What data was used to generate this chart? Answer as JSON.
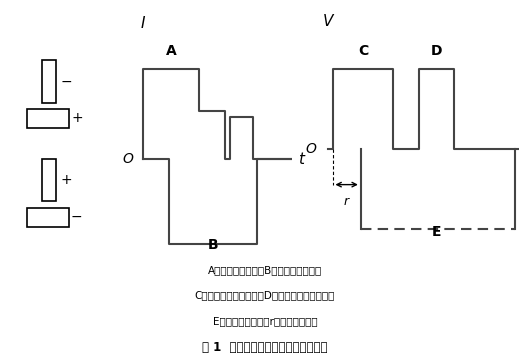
{
  "caption": "圖 1  脈沖變極性弧焊電流及控制波形",
  "legend_line1": "A：直流正接脈沖；B：直流反接脈沖；",
  "legend_line2": "C：直流正接控制脈沖；D：直流反接控制脈沖；",
  "legend_line3": "E：光譜觸發信號；r：觸發延遲時間",
  "bg_color": "#ffffff",
  "line_color": "#000000",
  "waveform_color": "#444444",
  "axis_lw": 2.0,
  "wave_lw": 1.5
}
